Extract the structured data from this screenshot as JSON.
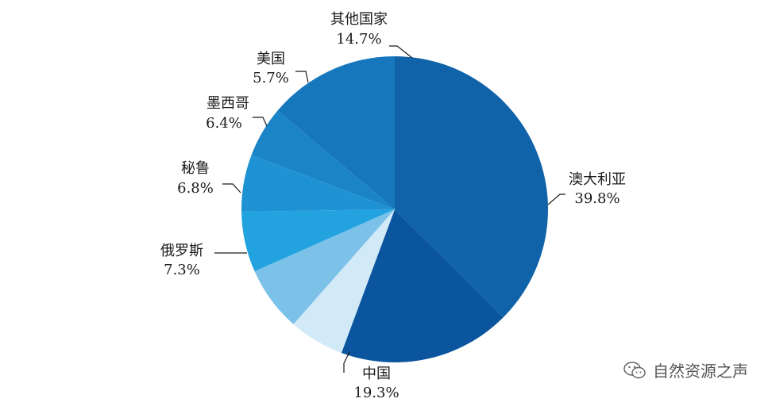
{
  "chart_data": {
    "type": "pie",
    "slices": [
      {
        "name": "澳大利亚",
        "label": "39.8%",
        "value": 39.8,
        "color": "#1063a8"
      },
      {
        "name": "中国",
        "label": "19.3%",
        "value": 19.3,
        "color": "#0b559e"
      },
      {
        "name": "",
        "label": "",
        "value": 6.2,
        "color": "#d2e9f7"
      },
      {
        "name": "俄罗斯",
        "label": "7.3%",
        "value": 7.3,
        "color": "#7cc1e8"
      },
      {
        "name": "秘鲁",
        "label": "6.8%",
        "value": 6.8,
        "color": "#22a3df"
      },
      {
        "name": "墨西哥",
        "label": "6.4%",
        "value": 6.4,
        "color": "#1f92d3"
      },
      {
        "name": "美国",
        "label": "5.7%",
        "value": 5.7,
        "color": "#1a84c7"
      },
      {
        "name": "其他国家",
        "label": "14.7%",
        "value": 14.7,
        "color": "#1677bd"
      }
    ]
  },
  "watermark": {
    "text": "自然资源之声",
    "icon": "wechat-icon"
  }
}
